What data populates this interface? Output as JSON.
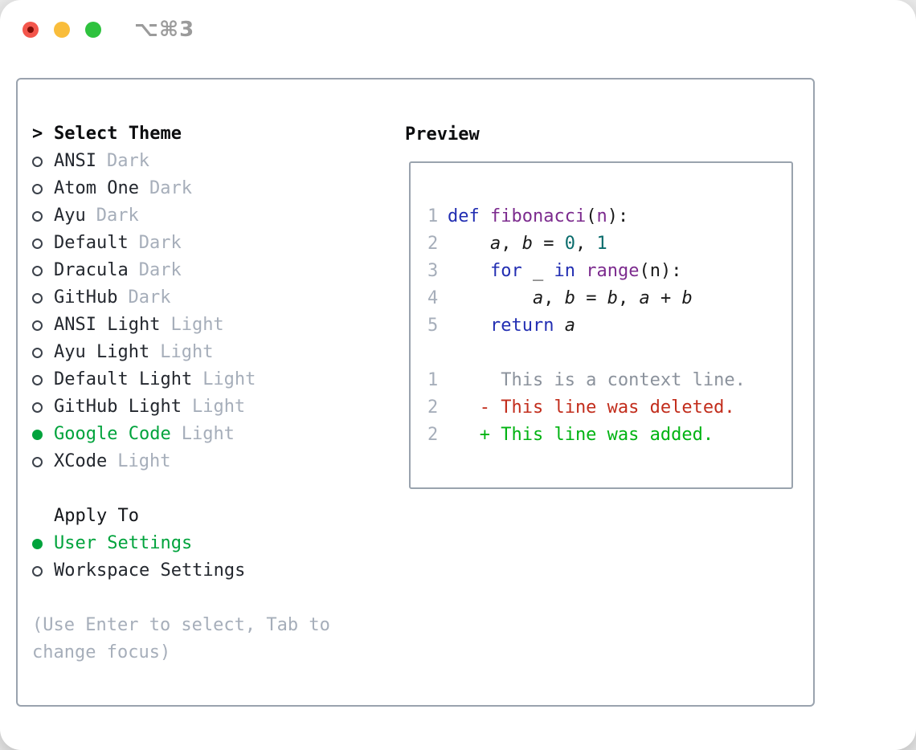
{
  "window": {
    "title": "⌥⌘3",
    "traffic_lights": [
      {
        "name": "close-button",
        "color": "#f3564c",
        "dot": "#7f0d06"
      },
      {
        "name": "minimize-button",
        "color": "#f9bd3b"
      },
      {
        "name": "zoom-button",
        "color": "#2ec23e"
      }
    ]
  },
  "theme_selector": {
    "header_prefix": ">",
    "header_label": "Select Theme",
    "themes": [
      {
        "name": "ANSI",
        "variant": "Dark",
        "selected": false
      },
      {
        "name": "Atom One",
        "variant": "Dark",
        "selected": false
      },
      {
        "name": "Ayu",
        "variant": "Dark",
        "selected": false
      },
      {
        "name": "Default",
        "variant": "Dark",
        "selected": false
      },
      {
        "name": "Dracula",
        "variant": "Dark",
        "selected": false
      },
      {
        "name": "GitHub",
        "variant": "Dark",
        "selected": false
      },
      {
        "name": "ANSI Light",
        "variant": "Light",
        "selected": false
      },
      {
        "name": "Ayu Light",
        "variant": "Light",
        "selected": false
      },
      {
        "name": "Default Light",
        "variant": "Light",
        "selected": false
      },
      {
        "name": "GitHub Light",
        "variant": "Light",
        "selected": false
      },
      {
        "name": "Google Code",
        "variant": "Light",
        "selected": true
      },
      {
        "name": "XCode",
        "variant": "Light",
        "selected": false
      }
    ],
    "apply_to_label": "Apply To",
    "apply_options": [
      {
        "label": "User Settings",
        "selected": true
      },
      {
        "label": "Workspace Settings",
        "selected": false
      }
    ],
    "hint": "(Use Enter to select, Tab to change focus)"
  },
  "preview": {
    "label": "Preview",
    "code_lines": [
      {
        "num": "1",
        "segments": [
          {
            "t": "def",
            "c": "kw"
          },
          {
            "t": " ",
            "c": "pl"
          },
          {
            "t": "fibonacci",
            "c": "fn"
          },
          {
            "t": "(",
            "c": "pl"
          },
          {
            "t": "n",
            "c": "fn"
          },
          {
            "t": "):",
            "c": "pl"
          }
        ]
      },
      {
        "num": "2",
        "segments": [
          {
            "t": "    ",
            "c": "pl"
          },
          {
            "t": "a",
            "c": "var"
          },
          {
            "t": ", ",
            "c": "pl"
          },
          {
            "t": "b",
            "c": "var"
          },
          {
            "t": " = ",
            "c": "pl"
          },
          {
            "t": "0",
            "c": "num"
          },
          {
            "t": ", ",
            "c": "pl"
          },
          {
            "t": "1",
            "c": "num"
          }
        ]
      },
      {
        "num": "3",
        "segments": [
          {
            "t": "    ",
            "c": "pl"
          },
          {
            "t": "for",
            "c": "kw"
          },
          {
            "t": " _ ",
            "c": "pl"
          },
          {
            "t": "in",
            "c": "kw"
          },
          {
            "t": " ",
            "c": "pl"
          },
          {
            "t": "range",
            "c": "fn"
          },
          {
            "t": "(n):",
            "c": "pl"
          }
        ]
      },
      {
        "num": "4",
        "segments": [
          {
            "t": "        ",
            "c": "pl"
          },
          {
            "t": "a",
            "c": "var"
          },
          {
            "t": ", ",
            "c": "pl"
          },
          {
            "t": "b",
            "c": "var"
          },
          {
            "t": " = ",
            "c": "pl"
          },
          {
            "t": "b",
            "c": "var"
          },
          {
            "t": ", ",
            "c": "pl"
          },
          {
            "t": "a",
            "c": "var"
          },
          {
            "t": " + ",
            "c": "pl"
          },
          {
            "t": "b",
            "c": "var"
          }
        ]
      },
      {
        "num": "5",
        "segments": [
          {
            "t": "    ",
            "c": "pl"
          },
          {
            "t": "return",
            "c": "kw"
          },
          {
            "t": " ",
            "c": "pl"
          },
          {
            "t": "a",
            "c": "var"
          }
        ]
      }
    ],
    "diff_lines": [
      {
        "num": "1",
        "text": "     This is a context line.",
        "kind": "context"
      },
      {
        "num": "2",
        "text": "   - This line was deleted.",
        "kind": "deleted"
      },
      {
        "num": "2",
        "text": "   + This line was added.",
        "kind": "added"
      }
    ]
  },
  "colors": {
    "selection_green": "#00a33c",
    "keyword_blue": "#222eb2",
    "function_purple": "#7c2b8e",
    "number_teal": "#0a6c6c",
    "code_plain": "#1a1a1a",
    "line_number_gray": "#a6aeba",
    "context_gray": "#8b929c",
    "deleted_red": "#c22d1c",
    "added_green": "#00b312",
    "panel_border": "#9aa3ae",
    "text_dark": "#23272e",
    "muted_gray": "#a6aeba",
    "title_gray": "#9b9b9b"
  }
}
